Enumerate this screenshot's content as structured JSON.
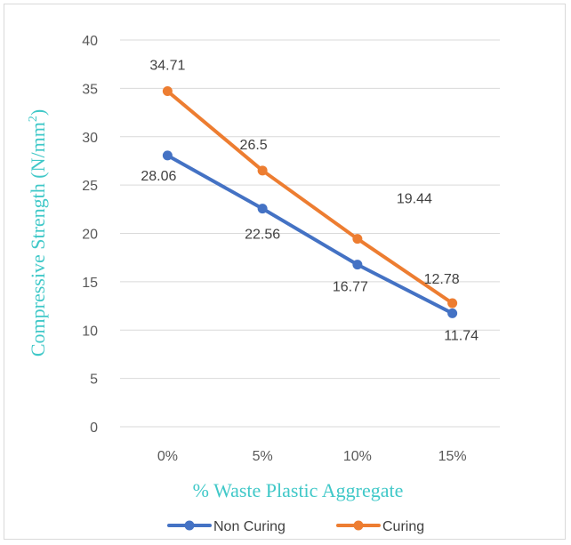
{
  "chart_data": {
    "type": "line",
    "categories": [
      "0%",
      "5%",
      "10%",
      "15%"
    ],
    "series": [
      {
        "name": "Non Curing",
        "values": [
          28.06,
          22.56,
          16.77,
          11.74
        ],
        "labels": [
          "28.06",
          "22.56",
          "16.77",
          "11.74"
        ],
        "color": "#4472c4"
      },
      {
        "name": "Curing",
        "values": [
          34.71,
          26.5,
          19.44,
          12.78
        ],
        "labels": [
          "34.71",
          "26.5",
          "19.44",
          "12.78"
        ],
        "color": "#ed7d31"
      }
    ],
    "xlabel": "% Waste Plastic Aggregate",
    "ylabel": "Compressive Strength (N/mm",
    "ylabel_superscript": "2",
    "ylabel_close": ")",
    "ylim": [
      0,
      40
    ],
    "yticks": [
      "0",
      "5",
      "10",
      "15",
      "20",
      "25",
      "30",
      "35",
      "40"
    ],
    "grid": true,
    "legend": "bottom",
    "title_color": "#40c8c8",
    "grid_color": "#d9d9d9"
  }
}
